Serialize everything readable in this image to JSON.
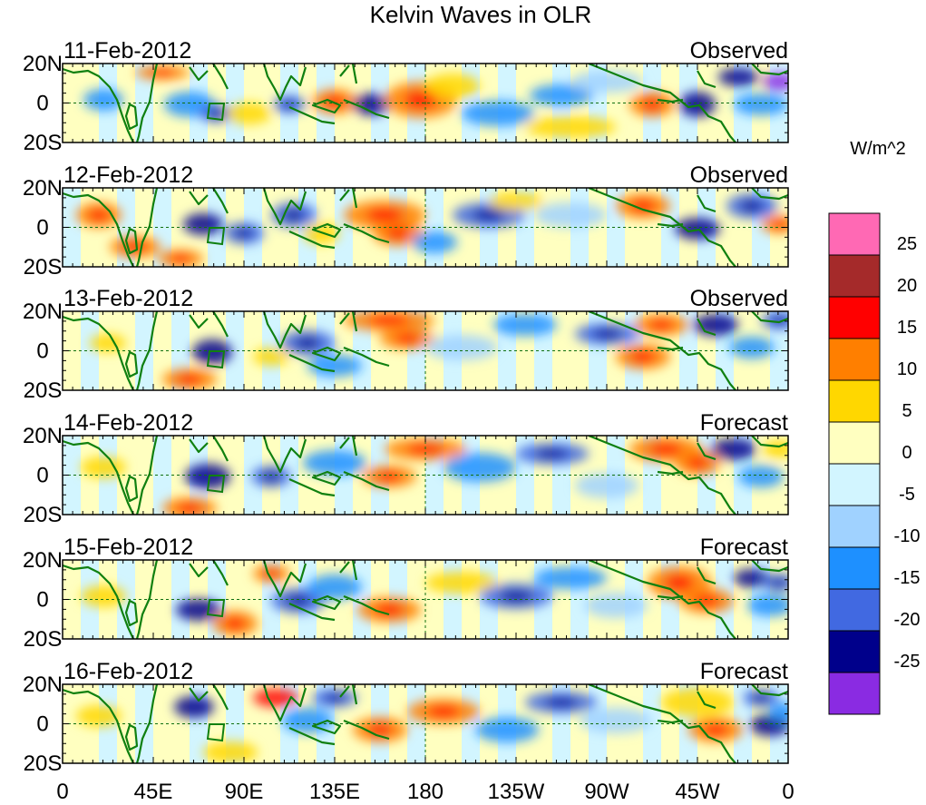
{
  "chart_data": {
    "type": "heatmap",
    "title": "Kelvin Waves in OLR",
    "units_label": "W/m^2",
    "panels": [
      {
        "date": "11-Feb-2012",
        "status": "Observed"
      },
      {
        "date": "12-Feb-2012",
        "status": "Observed"
      },
      {
        "date": "13-Feb-2012",
        "status": "Observed"
      },
      {
        "date": "14-Feb-2012",
        "status": "Forecast"
      },
      {
        "date": "15-Feb-2012",
        "status": "Forecast"
      },
      {
        "date": "16-Feb-2012",
        "status": "Forecast"
      }
    ],
    "lat_ticks": [
      "20N",
      "0",
      "20S"
    ],
    "lat_range": [
      -20,
      20
    ],
    "lon_ticks": [
      "0",
      "45E",
      "90E",
      "135E",
      "180",
      "135W",
      "90W",
      "45W",
      "0"
    ],
    "lon_range": [
      0,
      360
    ],
    "colorbar": {
      "levels": [
        25,
        20,
        15,
        10,
        5,
        0,
        -5,
        -10,
        -15,
        -20,
        -25
      ],
      "colors": [
        "#ff69b4",
        "#a52a2a",
        "#ff0000",
        "#ff7f00",
        "#ffd700",
        "#ffffc0",
        "#d2f5ff",
        "#a0d2ff",
        "#1e90ff",
        "#4169e1",
        "#00008b",
        "#8a2be2"
      ]
    }
  }
}
